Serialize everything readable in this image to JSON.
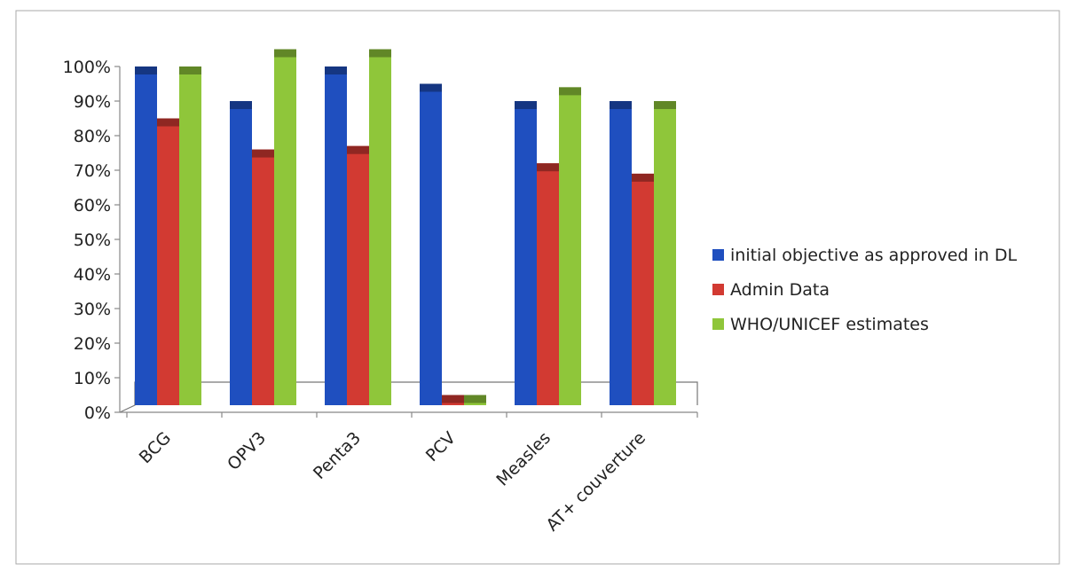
{
  "colors": {
    "initial": "#1f4fbf",
    "admin": "#d23a32",
    "who": "#8fc63a",
    "axis": "#888888",
    "frame": "#aaaaaa"
  },
  "chart_data": {
    "type": "bar",
    "categories": [
      "BCG",
      "OPV3",
      "Penta3",
      "PCV",
      "Measles",
      "AT+ couverture"
    ],
    "series": [
      {
        "name": "initial objective as approved in DL",
        "values": [
          100,
          90,
          100,
          95,
          90,
          90
        ]
      },
      {
        "name": "Admin Data",
        "values": [
          85,
          76,
          77,
          5,
          72,
          69
        ]
      },
      {
        "name": "WHO/UNICEF estimates",
        "values": [
          100,
          105,
          105,
          5,
          94,
          90
        ]
      }
    ],
    "y_ticks": [
      "0%",
      "10%",
      "20%",
      "30%",
      "40%",
      "50%",
      "60%",
      "70%",
      "80%",
      "90%",
      "100%"
    ],
    "ylim": [
      0,
      100
    ],
    "legend_position": "right",
    "grid": false
  }
}
